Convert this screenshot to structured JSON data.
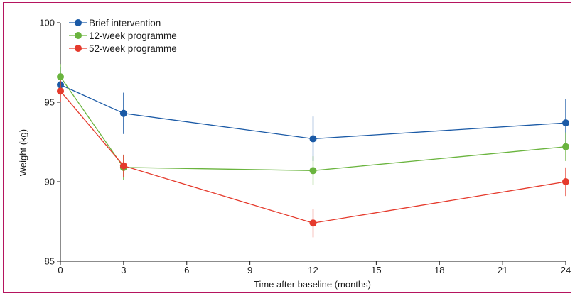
{
  "chart_data": {
    "type": "line",
    "xlabel": "Time after baseline (months)",
    "ylabel": "Weight (kg)",
    "xlim": [
      0,
      24
    ],
    "ylim": [
      85,
      100
    ],
    "x_ticks": [
      0,
      3,
      6,
      9,
      12,
      15,
      18,
      21,
      24
    ],
    "y_ticks": [
      85,
      90,
      95,
      100
    ],
    "x_tick_labels": [
      "0",
      "3",
      "6",
      "9",
      "12",
      "15",
      "18",
      "21",
      "24"
    ],
    "y_tick_labels": [
      "85",
      "90",
      "95",
      "100"
    ],
    "grid": false,
    "legend_position": "top-left",
    "series": [
      {
        "name": "Brief intervention",
        "color": "#1b5aa6",
        "x": [
          0,
          3,
          12,
          24
        ],
        "y": [
          96.1,
          94.3,
          92.7,
          93.7
        ],
        "error_low": [
          95.0,
          93.0,
          91.3,
          92.2
        ],
        "error_high": [
          97.2,
          95.6,
          94.1,
          95.2
        ]
      },
      {
        "name": "12-week programme",
        "color": "#6ab43e",
        "x": [
          0,
          3,
          12,
          24
        ],
        "y": [
          96.6,
          90.9,
          90.7,
          92.2
        ],
        "error_low": [
          95.8,
          90.1,
          89.8,
          91.3
        ],
        "error_high": [
          97.4,
          91.7,
          91.6,
          93.1
        ]
      },
      {
        "name": "52-week programme",
        "color": "#e53a2c",
        "x": [
          0,
          3,
          12,
          24
        ],
        "y": [
          95.7,
          91.0,
          87.4,
          90.0
        ],
        "error_low": [
          95.0,
          90.3,
          86.5,
          89.1
        ],
        "error_high": [
          96.4,
          91.7,
          88.3,
          90.9
        ]
      }
    ]
  }
}
